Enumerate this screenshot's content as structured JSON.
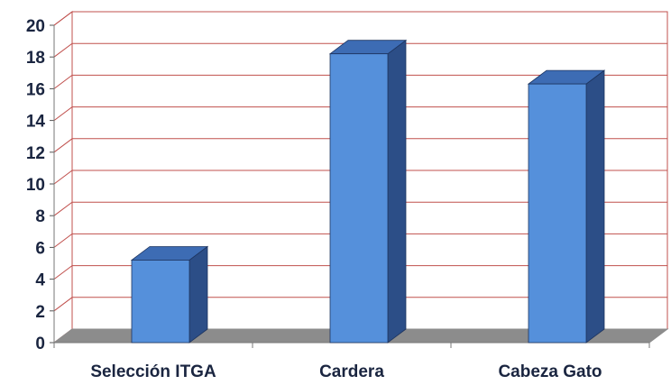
{
  "chart_data": {
    "type": "bar",
    "categories": [
      "Selección ITGA",
      "Cardera",
      "Cabeza Gato"
    ],
    "values": [
      5.2,
      18.2,
      16.3
    ],
    "yticks": [
      "0",
      "2",
      "4",
      "6",
      "8",
      "10",
      "12",
      "14",
      "16",
      "18",
      "20"
    ],
    "ylim": [
      0,
      20
    ],
    "title": "",
    "xlabel": "",
    "ylabel": "",
    "grid": true,
    "style": "3d-column"
  },
  "colors": {
    "bar_front": "#5590db",
    "bar_top": "#3d6cb4",
    "bar_side": "#2c4e87",
    "grid": "#c0504d",
    "floor": "#8c8c8c",
    "wall": "#ffffff",
    "text": "#1a2540"
  }
}
